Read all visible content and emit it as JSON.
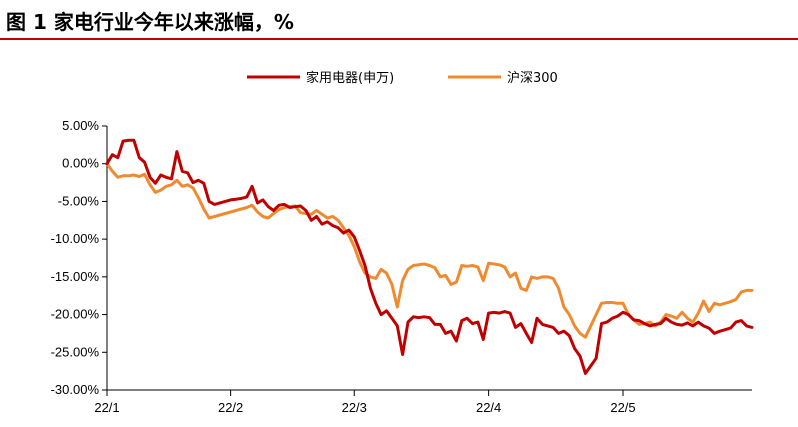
{
  "header": {
    "title": "图 1 家电行业今年以来涨幅，%"
  },
  "chart_data": {
    "type": "line",
    "title": "",
    "xlabel": "",
    "ylabel": "",
    "ylim": [
      -0.3,
      0.05
    ],
    "yticks": [
      0.05,
      0.0,
      -0.05,
      -0.1,
      -0.15,
      -0.2,
      -0.25,
      -0.3
    ],
    "ytick_labels": [
      "5.00%",
      "0.00%",
      "-5.00%",
      "-10.00%",
      "-15.00%",
      "-20.00%",
      "-25.00%",
      "-30.00%"
    ],
    "xticks": [
      "22/1",
      "22/2",
      "22/3",
      "22/4",
      "22/5"
    ],
    "xtick_positions": [
      0,
      23,
      46,
      71,
      96
    ],
    "legend": "top-center",
    "grid": false,
    "series": [
      {
        "name": "家用电器(申万)",
        "color": "#c00000",
        "x": [
          0,
          1,
          2,
          3,
          4,
          5,
          6,
          7,
          8,
          9,
          10,
          11,
          12,
          13,
          14,
          15,
          16,
          17,
          18,
          19,
          20,
          21,
          22,
          23,
          24,
          25,
          26,
          27,
          28,
          29,
          30,
          31,
          32,
          33,
          34,
          35,
          36,
          37,
          38,
          39,
          40,
          41,
          42,
          43,
          44,
          45,
          46,
          47,
          48,
          49,
          50,
          51,
          52,
          53,
          54,
          55,
          56,
          57,
          58,
          59,
          60,
          61,
          62,
          63,
          64,
          65,
          66,
          67,
          68,
          69,
          70,
          71,
          72,
          73,
          74,
          75,
          76,
          77,
          78,
          79,
          80,
          81,
          82,
          83,
          84,
          85,
          86,
          87,
          88,
          89,
          90,
          91,
          92,
          93,
          94,
          95,
          96,
          97,
          98,
          99,
          100,
          101,
          102,
          103,
          104,
          105,
          106,
          107,
          108,
          109,
          110,
          111,
          112,
          113,
          114,
          115,
          116,
          117,
          118,
          119,
          120
        ],
        "values": [
          0.0,
          0.012,
          0.008,
          0.03,
          0.031,
          0.031,
          0.008,
          0.002,
          -0.018,
          -0.026,
          -0.015,
          -0.018,
          -0.02,
          0.016,
          -0.01,
          -0.012,
          -0.025,
          -0.022,
          -0.026,
          -0.05,
          -0.054,
          -0.052,
          -0.05,
          -0.048,
          -0.047,
          -0.046,
          -0.044,
          -0.03,
          -0.052,
          -0.048,
          -0.057,
          -0.062,
          -0.055,
          -0.054,
          -0.058,
          -0.057,
          -0.056,
          -0.062,
          -0.075,
          -0.07,
          -0.08,
          -0.077,
          -0.082,
          -0.085,
          -0.092,
          -0.088,
          -0.097,
          -0.115,
          -0.135,
          -0.165,
          -0.185,
          -0.2,
          -0.195,
          -0.205,
          -0.215,
          -0.253,
          -0.21,
          -0.203,
          -0.204,
          -0.203,
          -0.204,
          -0.213,
          -0.213,
          -0.225,
          -0.222,
          -0.235,
          -0.208,
          -0.205,
          -0.212,
          -0.21,
          -0.233,
          -0.198,
          -0.197,
          -0.198,
          -0.196,
          -0.198,
          -0.217,
          -0.212,
          -0.225,
          -0.237,
          -0.205,
          -0.213,
          -0.215,
          -0.217,
          -0.225,
          -0.222,
          -0.228,
          -0.245,
          -0.255,
          -0.278,
          -0.268,
          -0.258,
          -0.212,
          -0.21,
          -0.205,
          -0.202,
          -0.197,
          -0.2,
          -0.207,
          -0.208,
          -0.212,
          -0.215,
          -0.213,
          -0.212,
          -0.205,
          -0.21,
          -0.213,
          -0.214,
          -0.211,
          -0.215,
          -0.21,
          -0.215,
          -0.218,
          -0.225,
          -0.222,
          -0.22,
          -0.218,
          -0.21,
          -0.208,
          -0.215,
          -0.217
        ]
      },
      {
        "name": "沪深300",
        "color": "#f08a30",
        "x": [
          0,
          1,
          2,
          3,
          4,
          5,
          6,
          7,
          8,
          9,
          10,
          11,
          12,
          13,
          14,
          15,
          16,
          17,
          18,
          19,
          20,
          21,
          22,
          23,
          24,
          25,
          26,
          27,
          28,
          29,
          30,
          31,
          32,
          33,
          34,
          35,
          36,
          37,
          38,
          39,
          40,
          41,
          42,
          43,
          44,
          45,
          46,
          47,
          48,
          49,
          50,
          51,
          52,
          53,
          54,
          55,
          56,
          57,
          58,
          59,
          60,
          61,
          62,
          63,
          64,
          65,
          66,
          67,
          68,
          69,
          70,
          71,
          72,
          73,
          74,
          75,
          76,
          77,
          78,
          79,
          80,
          81,
          82,
          83,
          84,
          85,
          86,
          87,
          88,
          89,
          90,
          91,
          92,
          93,
          94,
          95,
          96,
          97,
          98,
          99,
          100,
          101,
          102,
          103,
          104,
          105,
          106,
          107,
          108,
          109,
          110,
          111,
          112,
          113,
          114,
          115,
          116,
          117,
          118,
          119,
          120
        ],
        "values": [
          0.0,
          -0.01,
          -0.018,
          -0.016,
          -0.016,
          -0.015,
          -0.017,
          -0.014,
          -0.028,
          -0.038,
          -0.035,
          -0.03,
          -0.028,
          -0.022,
          -0.03,
          -0.028,
          -0.032,
          -0.045,
          -0.06,
          -0.072,
          -0.07,
          -0.068,
          -0.066,
          -0.064,
          -0.062,
          -0.06,
          -0.058,
          -0.055,
          -0.064,
          -0.07,
          -0.072,
          -0.066,
          -0.061,
          -0.058,
          -0.057,
          -0.056,
          -0.065,
          -0.066,
          -0.067,
          -0.062,
          -0.067,
          -0.072,
          -0.07,
          -0.075,
          -0.085,
          -0.095,
          -0.11,
          -0.13,
          -0.145,
          -0.15,
          -0.152,
          -0.14,
          -0.145,
          -0.16,
          -0.19,
          -0.155,
          -0.14,
          -0.135,
          -0.134,
          -0.133,
          -0.135,
          -0.138,
          -0.15,
          -0.148,
          -0.16,
          -0.157,
          -0.135,
          -0.136,
          -0.135,
          -0.137,
          -0.155,
          -0.132,
          -0.133,
          -0.134,
          -0.137,
          -0.15,
          -0.145,
          -0.165,
          -0.168,
          -0.15,
          -0.152,
          -0.15,
          -0.15,
          -0.152,
          -0.165,
          -0.19,
          -0.2,
          -0.215,
          -0.225,
          -0.23,
          -0.215,
          -0.2,
          -0.185,
          -0.184,
          -0.184,
          -0.185,
          -0.185,
          -0.2,
          -0.207,
          -0.213,
          -0.212,
          -0.21,
          -0.215,
          -0.21,
          -0.2,
          -0.202,
          -0.205,
          -0.197,
          -0.205,
          -0.21,
          -0.198,
          -0.182,
          -0.196,
          -0.185,
          -0.187,
          -0.185,
          -0.183,
          -0.18,
          -0.17,
          -0.168,
          -0.168
        ]
      }
    ]
  }
}
